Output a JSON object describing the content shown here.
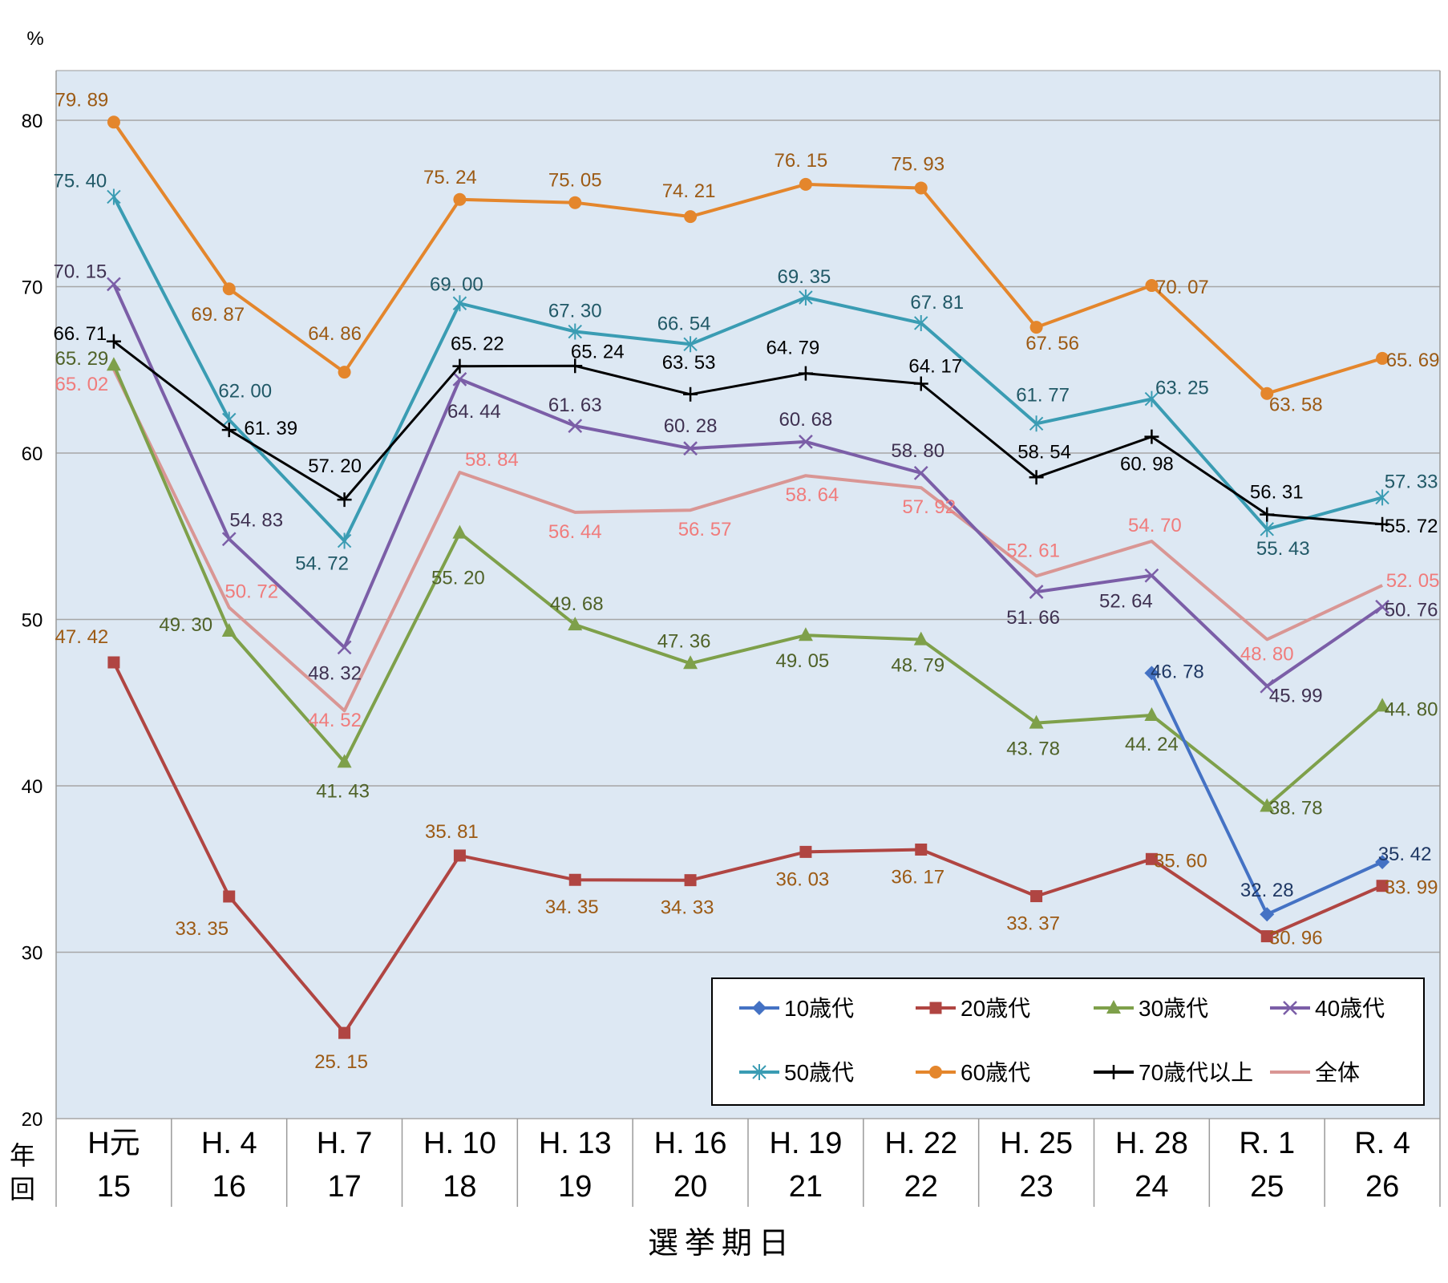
{
  "chart_data": {
    "type": "line",
    "unit": "%",
    "ylim": [
      20,
      80
    ],
    "yticks": [
      20,
      30,
      40,
      50,
      60,
      70,
      80
    ],
    "grid": true,
    "legend_position": "bottom-right",
    "row_labels": [
      "年",
      "回"
    ],
    "xlabel": "選挙期日",
    "categories": [
      {
        "year": "H元",
        "round": "15"
      },
      {
        "year": "H. 4",
        "round": "16"
      },
      {
        "year": "H. 7",
        "round": "17"
      },
      {
        "year": "H. 10",
        "round": "18"
      },
      {
        "year": "H. 13",
        "round": "19"
      },
      {
        "year": "H. 16",
        "round": "20"
      },
      {
        "year": "H. 19",
        "round": "21"
      },
      {
        "year": "H. 22",
        "round": "22"
      },
      {
        "year": "H. 25",
        "round": "23"
      },
      {
        "year": "H. 28",
        "round": "24"
      },
      {
        "year": "R. 1",
        "round": "25"
      },
      {
        "year": "R. 4",
        "round": "26"
      }
    ],
    "series": [
      {
        "name": "10歳代",
        "color": "#4472c4",
        "label_color": "#1f3864",
        "marker": "diamond",
        "values": [
          null,
          null,
          null,
          null,
          null,
          null,
          null,
          null,
          null,
          46.78,
          32.28,
          35.42
        ],
        "labels": [
          null,
          null,
          null,
          null,
          null,
          null,
          null,
          null,
          null,
          "46. 78",
          "32. 28",
          "35. 42"
        ]
      },
      {
        "name": "20歳代",
        "color": "#b04542",
        "label_color": "#9c5a14",
        "marker": "square",
        "values": [
          47.42,
          33.35,
          25.15,
          35.81,
          34.35,
          34.33,
          36.03,
          36.17,
          33.37,
          35.6,
          30.96,
          33.99
        ],
        "labels": [
          "47. 42",
          "33. 35",
          "25. 15",
          "35. 81",
          "34. 35",
          "34. 33",
          "36. 03",
          "36. 17",
          "33. 37",
          "35. 60",
          "30. 96",
          "33. 99"
        ]
      },
      {
        "name": "30歳代",
        "color": "#7ea04a",
        "label_color": "#4f6228",
        "marker": "triangle",
        "values": [
          65.29,
          49.3,
          41.43,
          55.2,
          49.68,
          47.36,
          49.05,
          48.79,
          43.78,
          44.24,
          38.78,
          44.8
        ],
        "labels": [
          "65. 29",
          "49. 30",
          "41. 43",
          "55. 20",
          "49. 68",
          "47. 36",
          "49. 05",
          "48. 79",
          "43. 78",
          "44. 24",
          "38. 78",
          "44. 80"
        ]
      },
      {
        "name": "40歳代",
        "color": "#7b5ea7",
        "label_color": "#3f3151",
        "marker": "x",
        "values": [
          70.15,
          54.83,
          48.32,
          64.44,
          61.63,
          60.28,
          60.68,
          58.8,
          51.66,
          52.64,
          45.99,
          50.76
        ],
        "labels": [
          "70. 15",
          "54. 83",
          "48. 32",
          "64. 44",
          "61. 63",
          "60. 28",
          "60. 68",
          "58. 80",
          "51. 66",
          "52. 64",
          "45. 99",
          "50. 76"
        ]
      },
      {
        "name": "50歳代",
        "color": "#3a9cb3",
        "label_color": "#215967",
        "marker": "star",
        "values": [
          75.4,
          62.0,
          54.72,
          69.0,
          67.3,
          66.54,
          69.35,
          67.81,
          61.77,
          63.25,
          55.43,
          57.33
        ],
        "labels": [
          "75. 40",
          "62. 00",
          "54. 72",
          "69. 00",
          "67. 30",
          "66. 54",
          "69. 35",
          "67. 81",
          "61. 77",
          "63. 25",
          "55. 43",
          "57. 33"
        ]
      },
      {
        "name": "60歳代",
        "color": "#e4862c",
        "label_color": "#9c5a14",
        "marker": "circle",
        "values": [
          79.89,
          69.87,
          64.86,
          75.24,
          75.05,
          74.21,
          76.15,
          75.93,
          67.56,
          70.07,
          63.58,
          65.69
        ],
        "labels": [
          "79. 89",
          "69. 87",
          "64. 86",
          "75. 24",
          "75. 05",
          "74. 21",
          "76. 15",
          "75. 93",
          "67. 56",
          "70. 07",
          "63. 58",
          "65. 69"
        ]
      },
      {
        "name": "70歳代以上",
        "color": "#000000",
        "label_color": "#000000",
        "marker": "plus",
        "values": [
          66.71,
          61.39,
          57.2,
          65.22,
          65.24,
          63.53,
          64.79,
          64.17,
          58.54,
          60.98,
          56.31,
          55.72
        ],
        "labels": [
          "66. 71",
          "61. 39",
          "57. 20",
          "65. 22",
          "65. 24",
          "63. 53",
          "64. 79",
          "64. 17",
          "58. 54",
          "60. 98",
          "56. 31",
          "55. 72"
        ]
      },
      {
        "name": "全体",
        "color": "#d99694",
        "label_color": "#f07c7c",
        "marker": "none",
        "values": [
          65.02,
          50.72,
          44.52,
          58.84,
          56.44,
          56.57,
          58.64,
          57.92,
          52.61,
          54.7,
          48.8,
          52.05
        ],
        "labels": [
          "65. 02",
          "50. 72",
          "44. 52",
          "58. 84",
          "56. 44",
          "56. 57",
          "58. 64",
          "57. 92",
          "52. 61",
          "54. 70",
          "48. 80",
          "52. 05"
        ]
      }
    ]
  }
}
